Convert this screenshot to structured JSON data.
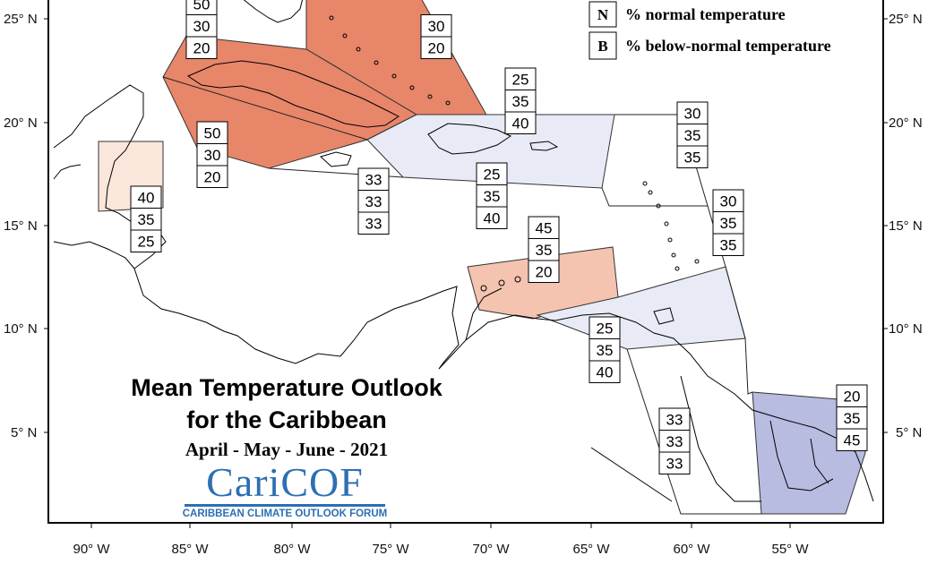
{
  "map": {
    "title_line1": "Mean Temperature Outlook",
    "title_line2": "for the Caribbean",
    "period": "April - May - June - 2021",
    "logo_text": "CariCOF",
    "logo_subtitle": "CARIBBEAN CLIMATE OUTLOOK FORUM",
    "legend": [
      {
        "letter": "N",
        "label": "% normal temperature"
      },
      {
        "letter": "B",
        "label": "% below-normal temperature"
      }
    ],
    "lat_labels": [
      "25° N",
      "20° N",
      "15° N",
      "10° N",
      "5° N"
    ],
    "lon_labels": [
      "90° W",
      "85° W",
      "80° W",
      "75° W",
      "70° W",
      "65° W",
      "60° W",
      "55° W"
    ],
    "colors": {
      "above_strong": "#e8866a",
      "above_medium": "#f4c4b0",
      "above_light": "#fbe6dc",
      "below_light": "#e8ebf6",
      "below_strong": "#b8bce0"
    },
    "regions": [
      {
        "name": "bahamas",
        "above": "",
        "normal": "30",
        "below": "20"
      },
      {
        "name": "north-west",
        "above": "50",
        "normal": "30",
        "below": "20"
      },
      {
        "name": "cuba",
        "above": "50",
        "normal": "30",
        "below": "20"
      },
      {
        "name": "belize",
        "above": "40",
        "normal": "35",
        "below": "25"
      },
      {
        "name": "jamaica-cayman",
        "above": "33",
        "normal": "33",
        "below": "33"
      },
      {
        "name": "hispaniola-inner",
        "above": "25",
        "normal": "35",
        "below": "40"
      },
      {
        "name": "puerto-rico-north",
        "above": "25",
        "normal": "35",
        "below": "40"
      },
      {
        "name": "leeward-north",
        "above": "30",
        "normal": "35",
        "below": "35"
      },
      {
        "name": "leeward-south",
        "above": "30",
        "normal": "35",
        "below": "35"
      },
      {
        "name": "abc-islands",
        "above": "45",
        "normal": "35",
        "below": "20"
      },
      {
        "name": "trinidad-tobago",
        "above": "25",
        "normal": "35",
        "below": "40"
      },
      {
        "name": "guyana",
        "above": "33",
        "normal": "33",
        "below": "33"
      },
      {
        "name": "suriname-french-guiana",
        "above": "20",
        "normal": "35",
        "below": "45"
      }
    ]
  }
}
